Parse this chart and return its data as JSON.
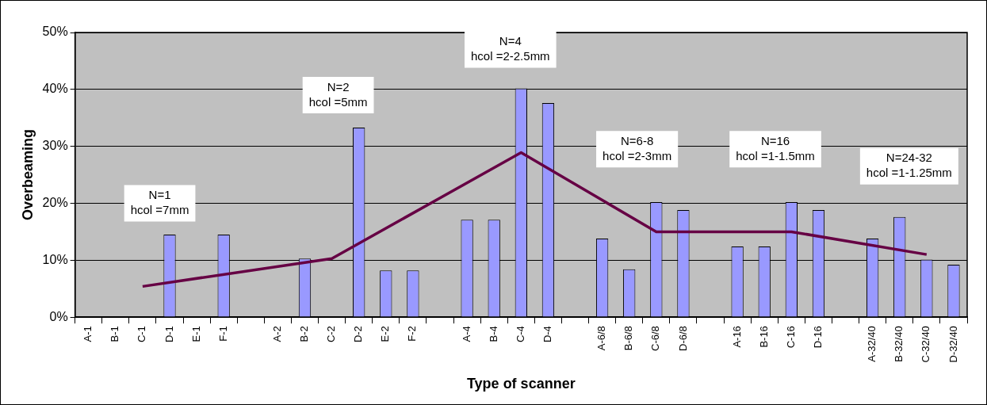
{
  "chart_data": {
    "type": "bar",
    "xlabel": "Type of scanner",
    "ylabel": "Overbeaming",
    "categories": [
      "A-1",
      "B-1",
      "C-1",
      "D-1",
      "E-1",
      "F-1",
      null,
      "A-2",
      "B-2",
      "C-2",
      "D-2",
      "E-2",
      "F-2",
      null,
      "A-4",
      "B-4",
      "C-4",
      "D-4",
      null,
      "A-6/8",
      "B-6/8",
      "C-6/8",
      "D-6/8",
      null,
      "A-16",
      "B-16",
      "C-16",
      "D-16",
      null,
      "A-32/40",
      "B-32/40",
      "C-32/40",
      "D-32/40"
    ],
    "series": [
      {
        "color": "#9999ff",
        "values": [
          null,
          null,
          null,
          14.5,
          null,
          14.5,
          null,
          null,
          10.3,
          null,
          33.3,
          8.2,
          8.2,
          null,
          17.1,
          17.1,
          40.2,
          37.6,
          null,
          13.8,
          8.4,
          20.2,
          18.8,
          null,
          12.4,
          12.4,
          20.2,
          18.8,
          null,
          13.8,
          17.6,
          10.1,
          9.2
        ]
      },
      {
        "type": "line",
        "color": "#660044",
        "x": [
          "C-1",
          "C-2",
          "C-4",
          "C-6/8",
          "C-16",
          "C-32/40"
        ],
        "values": [
          5.4,
          10.3,
          28.9,
          15.0,
          15.0,
          11.0
        ]
      }
    ],
    "ylim": [
      0,
      50
    ],
    "yticks": [
      {
        "value": 0,
        "label": "0%"
      },
      {
        "value": 10,
        "label": "10%"
      },
      {
        "value": 20,
        "label": "20%"
      },
      {
        "value": 30,
        "label": "30%"
      },
      {
        "value": 40,
        "label": "40%"
      },
      {
        "value": 50,
        "label": "50%"
      }
    ],
    "grid": "y",
    "legend": false,
    "marker": "none",
    "annotations": [
      "N=1\nhcol =7mm",
      "N=2\nhcol =5mm",
      "N=4\nhcol =2-2.5mm",
      "N=6-8\nhcol =2-3mm",
      "N=16\nhcol =1-1.5mm",
      "N=24-32\nhcol =1-1.25mm"
    ]
  }
}
